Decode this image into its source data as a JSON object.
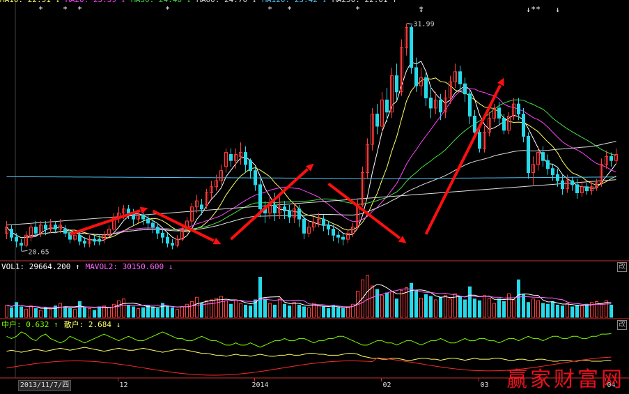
{
  "chart_data": {
    "type": "candlestick",
    "colors": {
      "up": "#ff3b3b",
      "down": "#26d9e9",
      "ma5": "#ffffff",
      "ma10": "#ffff66",
      "ma20": "#ff44ff",
      "ma30": "#44dd44",
      "ma60": "#dddddd",
      "ma120": "#4fc3f7",
      "ma250": "#e0e0e0",
      "vol_ma1": "#ffffff",
      "vol_ma2": "#ff66ff",
      "mid": "#7cfc00",
      "retail": "#ffff66",
      "arrow": "#ff1010",
      "axis": "#c83232"
    },
    "price_ylim": [
      20.3,
      32.6
    ],
    "price_high_label": "31.99",
    "price_low_label": "20.65",
    "ma_legend": [
      {
        "label": "MA10: 22.51 ↓",
        "color": "#ffff66"
      },
      {
        "label": "MA20: 23.39 ↓",
        "color": "#ff44ff"
      },
      {
        "label": "MA30: 24.46 ↓",
        "color": "#44dd44"
      },
      {
        "label": "MA60: 24.70 ↓",
        "color": "#dddddd"
      },
      {
        "label": "MA120: 23.42 ↓",
        "color": "#4fc3f7"
      },
      {
        "label": "MA250: 22.01 ↑",
        "color": "#e0e0e0"
      }
    ],
    "volume_legend": [
      {
        "label": "VOL1: 29664.200 ↑",
        "color": "#ffffff"
      },
      {
        "label": "MAVOL2: 30150.600 ↓",
        "color": "#ff66ff"
      }
    ],
    "indicator_legend": [
      {
        "label": "中户: 0.632 ↑",
        "color": "#7cfc00"
      },
      {
        "label": "散户: 2.684 ↓",
        "color": "#ffff66"
      }
    ],
    "x_tick_labels": [
      {
        "i": 24,
        "text": "12"
      },
      {
        "i": 52,
        "text": "2014"
      },
      {
        "i": 78,
        "text": "02"
      },
      {
        "i": 98,
        "text": "03"
      },
      {
        "i": 124,
        "text": "04"
      }
    ],
    "date_readout": "2013/11/7/四",
    "change_button": "改",
    "watermark": "赢家财富网",
    "markers": [
      "*",
      "*",
      "*",
      "*",
      "*",
      "*",
      "*",
      "*",
      "↓",
      "↓",
      "*",
      "*",
      "↓"
    ],
    "marker_index": [
      7,
      12,
      15,
      33,
      54,
      58,
      72,
      85,
      85,
      107,
      108,
      109,
      113
    ],
    "candles": [
      [
        21.6,
        21.9,
        21.3,
        22.2
      ],
      [
        21.8,
        21.4,
        21.2,
        22.0
      ],
      [
        21.4,
        21.2,
        20.9,
        21.6
      ],
      [
        21.1,
        21.0,
        20.7,
        21.3
      ],
      [
        21.0,
        21.5,
        20.9,
        21.7
      ],
      [
        21.4,
        21.9,
        21.2,
        22.1
      ],
      [
        21.9,
        21.6,
        21.4,
        22.2
      ],
      [
        21.6,
        22.0,
        21.4,
        22.2
      ],
      [
        22.0,
        21.8,
        21.5,
        22.2
      ],
      [
        21.8,
        22.0,
        21.6,
        22.3
      ],
      [
        22.0,
        21.8,
        21.6,
        22.2
      ],
      [
        21.8,
        22.0,
        21.6,
        22.3
      ],
      [
        21.8,
        21.6,
        21.4,
        22.0
      ],
      [
        21.6,
        21.3,
        21.1,
        21.8
      ],
      [
        21.3,
        21.5,
        21.2,
        21.7
      ],
      [
        21.5,
        21.2,
        21.0,
        21.7
      ],
      [
        21.2,
        21.1,
        20.9,
        21.4
      ],
      [
        21.1,
        21.3,
        20.9,
        21.5
      ],
      [
        21.3,
        21.2,
        21.0,
        21.5
      ],
      [
        21.3,
        21.2,
        21.0,
        21.5
      ],
      [
        21.3,
        21.5,
        21.1,
        21.7
      ],
      [
        21.5,
        21.8,
        21.4,
        22.0
      ],
      [
        21.8,
        22.4,
        21.7,
        22.6
      ],
      [
        22.4,
        22.6,
        22.1,
        22.9
      ],
      [
        22.6,
        22.8,
        22.3,
        23.0
      ],
      [
        22.8,
        22.6,
        22.3,
        23.0
      ],
      [
        22.6,
        22.3,
        22.0,
        22.8
      ],
      [
        22.3,
        22.5,
        22.1,
        22.7
      ],
      [
        22.5,
        22.3,
        22.0,
        22.7
      ],
      [
        22.3,
        22.1,
        21.8,
        22.5
      ],
      [
        22.1,
        21.9,
        21.6,
        22.3
      ],
      [
        21.9,
        21.6,
        21.3,
        22.1
      ],
      [
        21.6,
        21.4,
        21.1,
        21.8
      ],
      [
        21.4,
        21.1,
        20.9,
        21.6
      ],
      [
        21.1,
        21.0,
        20.8,
        21.3
      ],
      [
        21.0,
        21.3,
        20.9,
        21.5
      ],
      [
        21.3,
        21.8,
        21.2,
        22.0
      ],
      [
        21.8,
        22.2,
        21.6,
        22.4
      ],
      [
        22.2,
        22.9,
        22.0,
        23.1
      ],
      [
        22.9,
        23.2,
        22.6,
        23.5
      ],
      [
        23.0,
        22.8,
        22.5,
        23.3
      ],
      [
        23.0,
        23.6,
        22.8,
        23.8
      ],
      [
        23.6,
        23.9,
        23.3,
        24.2
      ],
      [
        23.9,
        24.2,
        23.7,
        24.5
      ],
      [
        24.2,
        24.7,
        24.0,
        25.0
      ],
      [
        24.9,
        25.6,
        24.6,
        25.8
      ],
      [
        25.5,
        25.2,
        24.9,
        25.8
      ],
      [
        25.2,
        25.5,
        24.8,
        25.8
      ],
      [
        25.4,
        25.6,
        25.0,
        26.1
      ],
      [
        25.6,
        25.0,
        24.6,
        25.9
      ],
      [
        25.2,
        24.7,
        24.3,
        25.3
      ],
      [
        24.7,
        24.0,
        23.7,
        24.9
      ],
      [
        24.0,
        22.8,
        22.4,
        24.3
      ],
      [
        22.8,
        22.6,
        22.1,
        23.2
      ],
      [
        22.6,
        23.0,
        22.3,
        23.4
      ],
      [
        23.0,
        22.6,
        22.2,
        23.6
      ],
      [
        22.6,
        22.9,
        22.3,
        23.4
      ],
      [
        22.9,
        22.7,
        22.3,
        23.2
      ],
      [
        22.7,
        22.4,
        22.1,
        23.0
      ],
      [
        22.4,
        22.8,
        22.1,
        23.1
      ],
      [
        22.8,
        22.3,
        21.9,
        23.0
      ],
      [
        22.3,
        21.6,
        21.3,
        22.5
      ],
      [
        21.6,
        21.9,
        21.4,
        22.2
      ],
      [
        21.9,
        22.1,
        21.7,
        22.4
      ],
      [
        22.1,
        22.3,
        21.9,
        22.6
      ],
      [
        22.3,
        22.0,
        21.7,
        22.5
      ],
      [
        22.0,
        21.8,
        21.5,
        22.2
      ],
      [
        21.8,
        21.5,
        21.2,
        22.0
      ],
      [
        21.5,
        21.4,
        21.1,
        21.7
      ],
      [
        21.4,
        21.3,
        21.0,
        21.6
      ],
      [
        21.3,
        21.6,
        21.1,
        21.8
      ],
      [
        21.6,
        21.9,
        21.4,
        22.1
      ],
      [
        21.9,
        23.0,
        21.8,
        23.3
      ],
      [
        23.0,
        24.6,
        22.9,
        24.9
      ],
      [
        24.6,
        26.0,
        24.3,
        26.3
      ],
      [
        26.0,
        27.5,
        25.7,
        27.8
      ],
      [
        27.5,
        26.9,
        26.5,
        28.0
      ],
      [
        26.9,
        28.2,
        26.6,
        28.6
      ],
      [
        28.2,
        27.6,
        27.1,
        28.8
      ],
      [
        27.6,
        29.4,
        27.3,
        29.8
      ],
      [
        29.4,
        28.6,
        28.2,
        30.0
      ],
      [
        28.6,
        30.8,
        28.4,
        31.2
      ],
      [
        30.8,
        31.8,
        30.4,
        31.99
      ],
      [
        31.8,
        29.8,
        29.5,
        31.9
      ],
      [
        29.8,
        28.9,
        28.6,
        30.3
      ],
      [
        28.9,
        29.3,
        28.4,
        29.8
      ],
      [
        29.3,
        28.3,
        27.9,
        29.6
      ],
      [
        28.3,
        27.8,
        27.3,
        28.9
      ],
      [
        27.8,
        28.2,
        27.5,
        28.6
      ],
      [
        28.2,
        27.6,
        27.2,
        28.5
      ],
      [
        27.6,
        28.3,
        27.3,
        28.7
      ],
      [
        28.3,
        29.1,
        28.0,
        29.4
      ],
      [
        29.1,
        29.6,
        28.8,
        30.0
      ],
      [
        29.6,
        29.0,
        28.6,
        29.9
      ],
      [
        29.0,
        28.5,
        28.1,
        29.3
      ],
      [
        28.5,
        27.4,
        27.0,
        28.7
      ],
      [
        27.4,
        26.6,
        26.3,
        27.7
      ],
      [
        26.6,
        25.8,
        25.6,
        26.9
      ],
      [
        25.8,
        26.6,
        25.6,
        26.9
      ],
      [
        26.6,
        27.3,
        26.4,
        27.6
      ],
      [
        27.3,
        27.8,
        27.1,
        28.0
      ],
      [
        27.8,
        27.3,
        27.0,
        28.1
      ],
      [
        27.3,
        26.7,
        26.5,
        27.5
      ],
      [
        26.7,
        27.4,
        26.5,
        27.6
      ],
      [
        27.4,
        28.0,
        27.2,
        28.3
      ],
      [
        28.0,
        27.5,
        27.2,
        28.3
      ],
      [
        27.5,
        26.4,
        26.1,
        27.8
      ],
      [
        26.4,
        24.6,
        24.3,
        26.6
      ],
      [
        24.6,
        25.0,
        24.0,
        25.4
      ],
      [
        25.0,
        25.6,
        24.7,
        25.9
      ],
      [
        25.6,
        25.2,
        24.9,
        25.9
      ],
      [
        25.2,
        24.8,
        24.5,
        25.5
      ],
      [
        24.8,
        24.5,
        24.2,
        25.0
      ],
      [
        24.5,
        24.2,
        23.9,
        24.8
      ],
      [
        24.2,
        23.8,
        23.5,
        24.5
      ],
      [
        23.8,
        24.2,
        23.6,
        24.5
      ],
      [
        24.2,
        24.0,
        23.7,
        24.4
      ],
      [
        24.0,
        23.6,
        23.3,
        24.3
      ],
      [
        23.6,
        23.9,
        23.4,
        24.2
      ],
      [
        23.9,
        23.7,
        23.5,
        24.1
      ],
      [
        23.7,
        23.9,
        23.5,
        24.2
      ],
      [
        23.9,
        24.1,
        23.7,
        24.3
      ],
      [
        24.1,
        25.0,
        23.9,
        25.3
      ],
      [
        25.0,
        25.4,
        24.8,
        25.7
      ],
      [
        25.4,
        25.2,
        24.9,
        25.6
      ],
      [
        25.2,
        25.5,
        25.0,
        25.8
      ]
    ],
    "volume": [
      1.4,
      1.1,
      1.7,
      1.2,
      0.9,
      1.3,
      1.0,
      0.8,
      1.1,
      0.9,
      1.3,
      1.6,
      1.2,
      1.0,
      0.9,
      1.8,
      1.1,
      1.0,
      0.8,
      1.2,
      1.3,
      1.1,
      1.5,
      1.9,
      2.1,
      1.4,
      1.2,
      1.0,
      1.1,
      1.4,
      1.2,
      1.0,
      1.6,
      1.3,
      1.1,
      0.9,
      1.2,
      1.5,
      1.8,
      2.3,
      1.6,
      1.9,
      2.0,
      2.2,
      2.4,
      1.9,
      1.5,
      2.0,
      1.6,
      1.4,
      1.3,
      2.0,
      4.6,
      2.1,
      1.6,
      1.4,
      2.1,
      1.5,
      1.3,
      1.7,
      1.4,
      1.2,
      1.1,
      1.6,
      1.3,
      1.2,
      1.0,
      1.4,
      1.1,
      1.0,
      1.2,
      1.5,
      3.0,
      4.3,
      4.8,
      3.6,
      3.2,
      2.5,
      2.8,
      2.9,
      2.1,
      3.1,
      3.4,
      3.9,
      3.1,
      2.2,
      2.6,
      2.4,
      2.0,
      2.3,
      2.5,
      2.1,
      2.7,
      2.4,
      2.0,
      3.5,
      2.1,
      1.9,
      2.5,
      2.2,
      1.6,
      2.1,
      1.8,
      2.7,
      2.0,
      4.3,
      2.6,
      1.7,
      2.1,
      1.9,
      1.6,
      1.5,
      1.8,
      1.4,
      1.3,
      1.6,
      1.2,
      1.4,
      1.3,
      1.5,
      1.7,
      1.8,
      1.6,
      1.9,
      1.4
    ],
    "indicator_mid": [
      0.62,
      0.61,
      0.62,
      0.64,
      0.63,
      0.61,
      0.6,
      0.62,
      0.63,
      0.61,
      0.6,
      0.59,
      0.6,
      0.62,
      0.61,
      0.6,
      0.59,
      0.6,
      0.61,
      0.62,
      0.63,
      0.62,
      0.61,
      0.6,
      0.61,
      0.62,
      0.61,
      0.6,
      0.6,
      0.61,
      0.62,
      0.63,
      0.64,
      0.63,
      0.62,
      0.61,
      0.61,
      0.6,
      0.6,
      0.61,
      0.62,
      0.61,
      0.6,
      0.6,
      0.59,
      0.58,
      0.58,
      0.59,
      0.58,
      0.58,
      0.59,
      0.58,
      0.57,
      0.58,
      0.59,
      0.6,
      0.6,
      0.61,
      0.6,
      0.6,
      0.61,
      0.61,
      0.6,
      0.59,
      0.6,
      0.6,
      0.61,
      0.61,
      0.62,
      0.62,
      0.61,
      0.6,
      0.59,
      0.58,
      0.58,
      0.59,
      0.6,
      0.6,
      0.59,
      0.59,
      0.58,
      0.59,
      0.6,
      0.6,
      0.59,
      0.58,
      0.59,
      0.6,
      0.6,
      0.61,
      0.6,
      0.59,
      0.59,
      0.6,
      0.61,
      0.6,
      0.6,
      0.61,
      0.61,
      0.6,
      0.6,
      0.59,
      0.6,
      0.61,
      0.61,
      0.6,
      0.61,
      0.62,
      0.61,
      0.61,
      0.6,
      0.61,
      0.62,
      0.62,
      0.61,
      0.61,
      0.62,
      0.62,
      0.61,
      0.61,
      0.62,
      0.62,
      0.63,
      0.63,
      0.632
    ],
    "indicator_retail": [
      2.78,
      2.79,
      2.78,
      2.77,
      2.78,
      2.79,
      2.8,
      2.79,
      2.78,
      2.79,
      2.8,
      2.81,
      2.8,
      2.79,
      2.8,
      2.81,
      2.82,
      2.81,
      2.8,
      2.79,
      2.78,
      2.79,
      2.8,
      2.81,
      2.8,
      2.79,
      2.79,
      2.8,
      2.81,
      2.8,
      2.79,
      2.78,
      2.77,
      2.78,
      2.79,
      2.8,
      2.8,
      2.79,
      2.78,
      2.77,
      2.76,
      2.76,
      2.75,
      2.74,
      2.74,
      2.73,
      2.74,
      2.75,
      2.74,
      2.74,
      2.73,
      2.74,
      2.75,
      2.74,
      2.73,
      2.73,
      2.74,
      2.74,
      2.75,
      2.74,
      2.74,
      2.75,
      2.76,
      2.76,
      2.75,
      2.75,
      2.74,
      2.74,
      2.74,
      2.75,
      2.76,
      2.76,
      2.75,
      2.73,
      2.72,
      2.71,
      2.71,
      2.7,
      2.7,
      2.71,
      2.71,
      2.7,
      2.69,
      2.69,
      2.7,
      2.71,
      2.71,
      2.7,
      2.7,
      2.69,
      2.7,
      2.71,
      2.71,
      2.7,
      2.69,
      2.7,
      2.71,
      2.7,
      2.7,
      2.7,
      2.71,
      2.71,
      2.7,
      2.69,
      2.69,
      2.7,
      2.7,
      2.69,
      2.69,
      2.7,
      2.7,
      2.69,
      2.68,
      2.68,
      2.69,
      2.69,
      2.68,
      2.68,
      2.69,
      2.69,
      2.68,
      2.68,
      2.68,
      2.69,
      2.684
    ],
    "arrows": [
      [
        13,
        21.55,
        29,
        22.85
      ],
      [
        30,
        22.7,
        44,
        21.05
      ],
      [
        46,
        21.3,
        63,
        25.05
      ],
      [
        66,
        24.05,
        82,
        21.1
      ],
      [
        86,
        21.55,
        102,
        29.3
      ]
    ]
  }
}
